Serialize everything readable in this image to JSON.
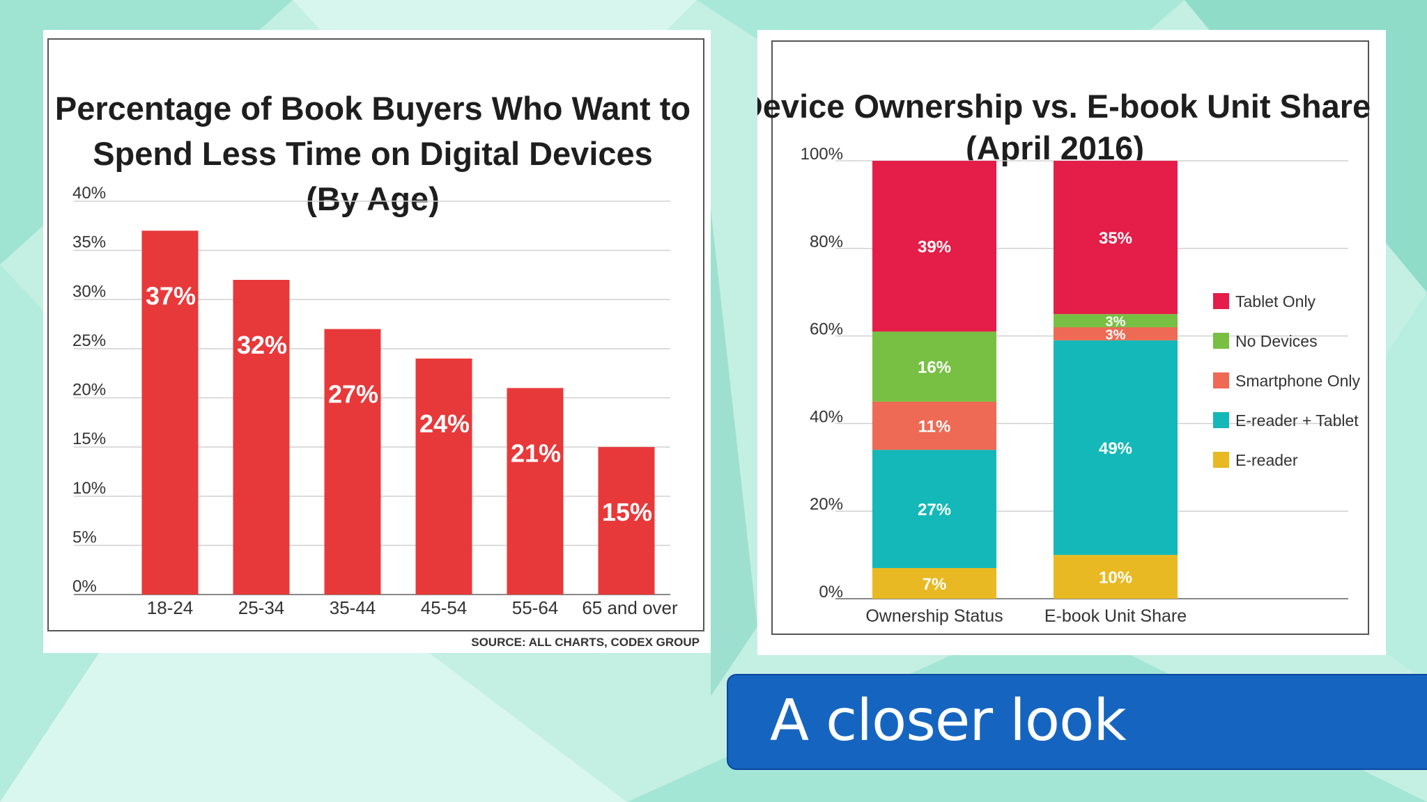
{
  "slide": {
    "banner_text": "A closer look",
    "colors": {
      "background": "#bfeee0",
      "banner": "#1565c0"
    }
  },
  "chart_data": [
    {
      "type": "bar",
      "title": [
        "Percentage of Book Buyers Who Want to",
        "Spend Less Time on Digital Devices",
        "(By Age)"
      ],
      "categories": [
        "18-24",
        "25-34",
        "35-44",
        "45-54",
        "55-64",
        "65 and over"
      ],
      "values": [
        37,
        32,
        27,
        24,
        21,
        15
      ],
      "value_labels": [
        "37%",
        "32%",
        "27%",
        "24%",
        "21%",
        "15%"
      ],
      "yticks": [
        "0%",
        "5%",
        "10%",
        "15%",
        "20%",
        "25%",
        "30%",
        "35%",
        "40%"
      ],
      "ylim": [
        0,
        40
      ],
      "grid": true,
      "color": "#e8393a",
      "source": "SOURCE: ALL CHARTS, CODEX GROUP"
    },
    {
      "type": "bar",
      "stacked": true,
      "title": [
        "Device Ownership vs. E-book Unit Share",
        "(April 2016)"
      ],
      "categories": [
        "Ownership Status",
        "E-book Unit Share"
      ],
      "series": [
        {
          "name": "E-reader",
          "color": "#e8b922",
          "values": [
            7,
            10
          ],
          "labels": [
            "7%",
            "10%"
          ]
        },
        {
          "name": "E-reader + Tablet",
          "color": "#14b8b8",
          "values": [
            27,
            49
          ],
          "labels": [
            "27%",
            "49%"
          ]
        },
        {
          "name": "Smartphone Only",
          "color": "#ef6a54",
          "values": [
            11,
            3
          ],
          "labels": [
            "11%",
            "3%"
          ]
        },
        {
          "name": "No Devices",
          "color": "#77c043",
          "values": [
            16,
            3
          ],
          "labels": [
            "16%",
            "3%"
          ]
        },
        {
          "name": "Tablet Only",
          "color": "#e41e48",
          "values": [
            39,
            35
          ],
          "labels": [
            "39%",
            "35%"
          ]
        }
      ],
      "legend_order": [
        "Tablet Only",
        "No Devices",
        "Smartphone Only",
        "E-reader + Tablet",
        "E-reader"
      ],
      "yticks": [
        "0%",
        "20%",
        "40%",
        "60%",
        "80%",
        "100%"
      ],
      "ylim": [
        0,
        100
      ],
      "grid": true,
      "legend_position": "right"
    }
  ]
}
